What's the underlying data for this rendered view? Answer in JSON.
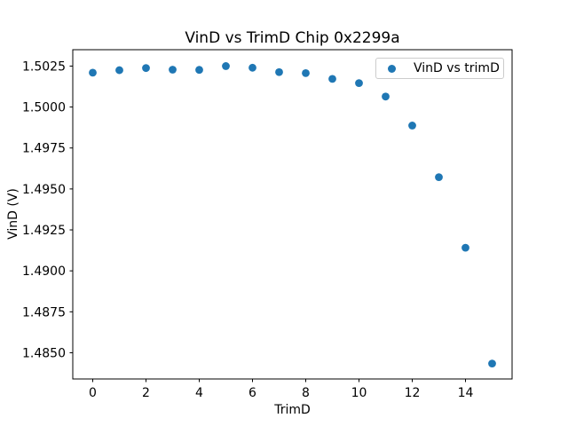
{
  "figure": {
    "background_color": "#ffffff"
  },
  "chart_data": {
    "type": "scatter",
    "title": "VinD vs TrimD Chip 0x2299a",
    "xlabel": "TrimD",
    "ylabel": "VinD (V)",
    "legend": {
      "label": "VinD vs trimD",
      "position": "upper right",
      "marker": "circle-icon"
    },
    "series": [
      {
        "name": "VinD vs trimD",
        "x": [
          0,
          1,
          2,
          3,
          4,
          5,
          6,
          7,
          8,
          9,
          10,
          11,
          12,
          13,
          14,
          15
        ],
        "y": [
          1.5021,
          1.50225,
          1.50238,
          1.50228,
          1.50227,
          1.5025,
          1.5024,
          1.50213,
          1.50207,
          1.50172,
          1.50146,
          1.50064,
          1.49887,
          1.49572,
          1.49141,
          1.48434
        ]
      }
    ],
    "xlim": [
      -0.75,
      15.75
    ],
    "ylim": [
      1.4834,
      1.5035
    ],
    "x_ticks": [
      0,
      2,
      4,
      6,
      8,
      10,
      12,
      14
    ],
    "x_tick_labels": [
      "0",
      "2",
      "4",
      "6",
      "8",
      "10",
      "12",
      "14"
    ],
    "y_ticks": [
      1.485,
      1.4875,
      1.49,
      1.4925,
      1.495,
      1.4975,
      1.5,
      1.5025
    ],
    "y_tick_labels": [
      "1.4850",
      "1.4875",
      "1.4900",
      "1.4925",
      "1.4950",
      "1.4975",
      "1.5000",
      "1.5025"
    ],
    "grid": false,
    "marker_color": "#1f77b4",
    "axis_color": "#000000",
    "legend_border_color": "#cccccc"
  }
}
